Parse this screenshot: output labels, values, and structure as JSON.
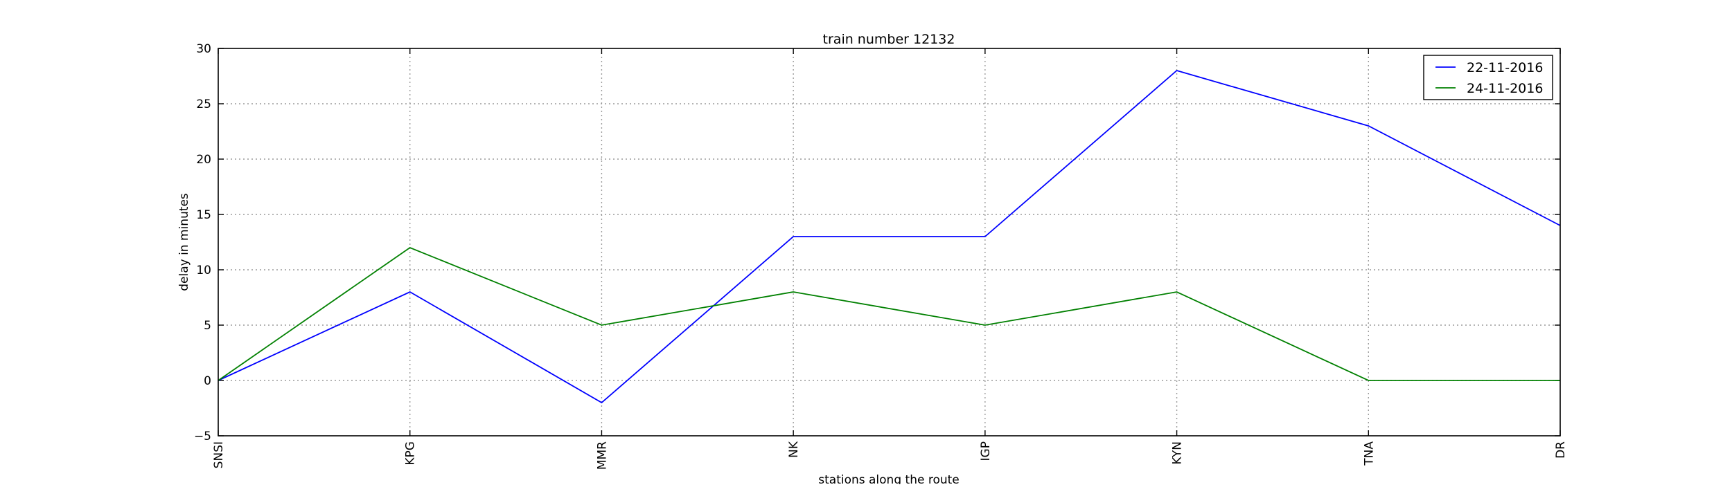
{
  "chart_data": {
    "type": "line",
    "title": "train number 12132",
    "xlabel": "stations along the route",
    "ylabel": "delay in minutes",
    "categories": [
      "SNSI",
      "KPG",
      "MMR",
      "NK",
      "IGP",
      "KYN",
      "TNA",
      "DR"
    ],
    "ylim": [
      -5,
      30
    ],
    "yticks": [
      -5,
      0,
      5,
      10,
      15,
      20,
      25,
      30
    ],
    "grid": true,
    "legend_position": "top-right",
    "series": [
      {
        "name": "22-11-2016",
        "color": "#0000ff",
        "values": [
          0,
          8,
          -2,
          13,
          13,
          28,
          23,
          14
        ]
      },
      {
        "name": "24-11-2016",
        "color": "#008000",
        "values": [
          0,
          12,
          5,
          8,
          5,
          8,
          0,
          0
        ]
      }
    ]
  }
}
